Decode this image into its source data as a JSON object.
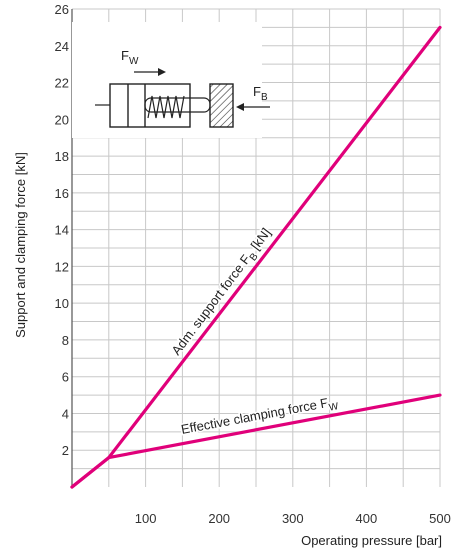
{
  "chart_data": {
    "type": "line",
    "xlabel": "Operating pressure [bar]",
    "ylabel": "Support and clamping force [kN]",
    "xlim": [
      0,
      500
    ],
    "ylim": [
      0,
      26
    ],
    "x_ticks": [
      100,
      200,
      300,
      400,
      500
    ],
    "y_ticks": [
      2,
      4,
      6,
      8,
      10,
      12,
      14,
      16,
      18,
      20,
      22,
      24,
      26
    ],
    "grid": true,
    "series": [
      {
        "name": "Adm. support force FB [kN]",
        "color": "#e0007a",
        "x": [
          0,
          50,
          500
        ],
        "y": [
          0,
          1.6,
          25
        ]
      },
      {
        "name": "Effective clamping force FW",
        "color": "#e0007a",
        "x": [
          0,
          50,
          500
        ],
        "y": [
          0,
          1.6,
          5
        ]
      }
    ],
    "labels": {
      "support": {
        "text_main": "Adm. support force F",
        "sub": "B",
        "suffix": " [kN]"
      },
      "clamping": {
        "text_main": "Effective clamping force F",
        "sub": "W"
      }
    }
  },
  "diagram": {
    "force_w_main": "F",
    "force_w_sub": "W",
    "force_b_main": "F",
    "force_b_sub": "B"
  }
}
